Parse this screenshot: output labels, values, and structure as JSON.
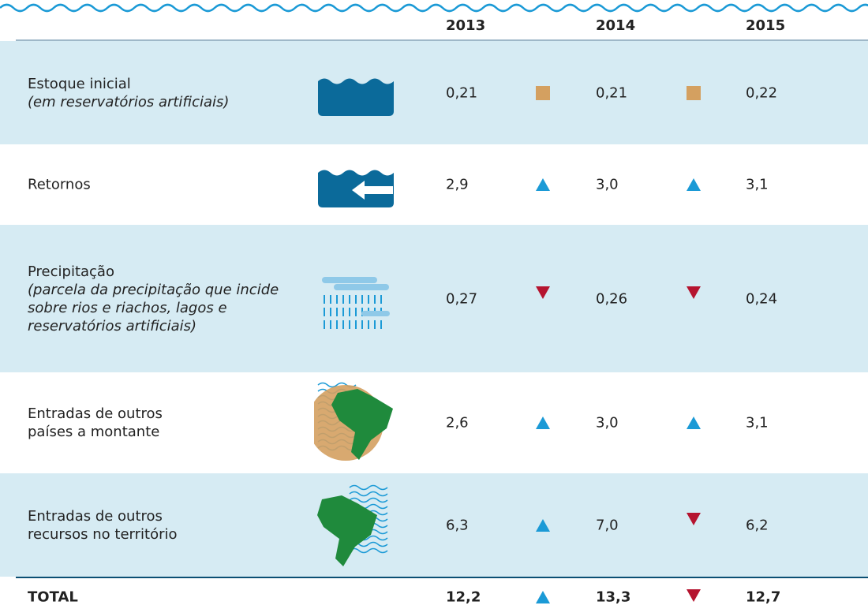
{
  "table": {
    "header": [
      "2013",
      "2014",
      "2015"
    ],
    "rows": [
      {
        "label": "Estoque inicial",
        "note": "(em reservatórios artificiais)",
        "values": [
          "0,21",
          "0,21",
          "0,22"
        ]
      },
      {
        "label": "Retornos",
        "values": [
          "2,9",
          "3,0",
          "3,1"
        ]
      },
      {
        "label": "Precipitação",
        "note": "(parcela da precipitação que incide sobre rios e riachos, lagos e reservatórios artificiais)",
        "values": [
          "0,27",
          "0,26",
          "0,24"
        ]
      },
      {
        "label": "Entradas de outros países a montante",
        "values": [
          "2,6",
          "3,0",
          "3,1"
        ]
      },
      {
        "label": "Entradas de outros recursos no território",
        "values": [
          "6,3",
          "7,0",
          "6,2"
        ]
      }
    ],
    "total": {
      "label": "TOTAL",
      "values": [
        "12,2",
        "13,3",
        "12,7"
      ]
    }
  }
}
